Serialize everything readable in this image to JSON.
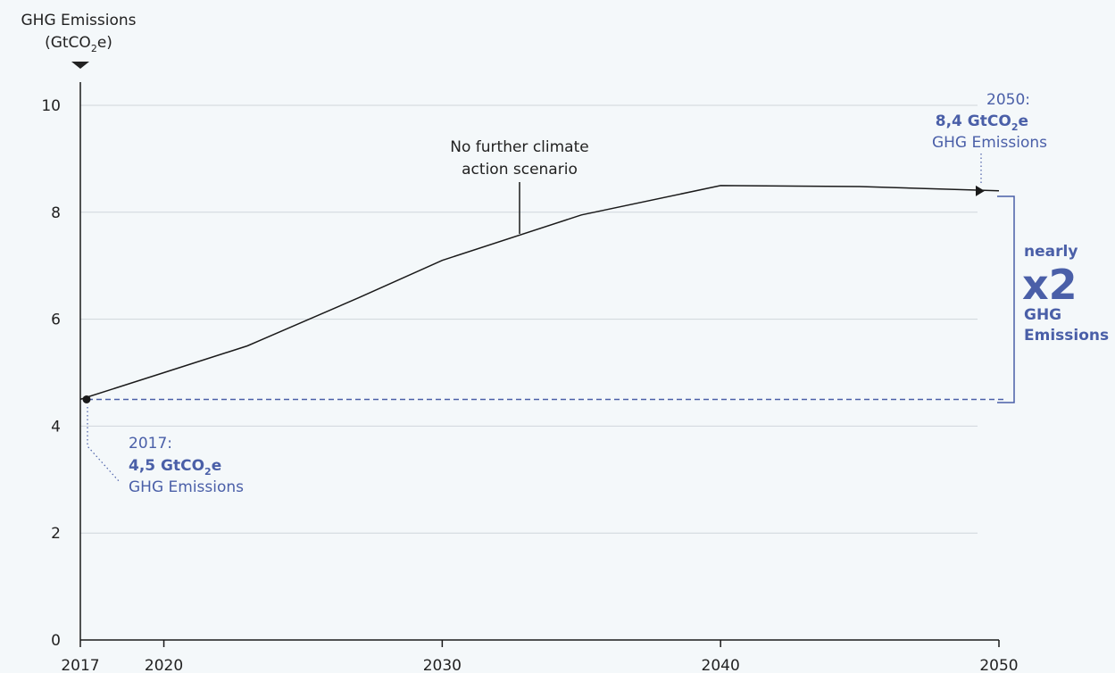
{
  "chart_data": {
    "type": "line",
    "ylabel_line1": "GHG Emissions",
    "ylabel_line2_prefix": "(GtCO",
    "ylabel_line2_sub": "2",
    "ylabel_line2_suffix": "e)",
    "ylim": [
      0,
      10
    ],
    "yticks": [
      0,
      2,
      4,
      6,
      8,
      10
    ],
    "xlim": [
      2017,
      2050
    ],
    "xticks": [
      2017,
      2020,
      2030,
      2040,
      2050
    ],
    "grid": true,
    "series": [
      {
        "x": [
          2017,
          2020,
          2023,
          2027,
          2030,
          2035,
          2040,
          2045,
          2050
        ],
        "y": [
          4.5,
          5.0,
          5.5,
          6.4,
          7.1,
          7.95,
          8.5,
          8.48,
          8.4
        ]
      }
    ],
    "baseline": 4.5,
    "scenario_label": [
      "No further climate",
      "action scenario"
    ],
    "start_annotation": {
      "year_label": "2017:",
      "value_prefix": "4,5 GtCO",
      "value_sub": "2",
      "value_suffix": "e",
      "caption": "GHG Emissions"
    },
    "end_annotation": {
      "year_label": "2050:",
      "value_prefix": "8,4 GtCO",
      "value_sub": "2",
      "value_suffix": "e",
      "caption": "GHG Emissions"
    },
    "bracket_annotation": {
      "line1": "nearly",
      "line2": "x2",
      "line3": "GHG",
      "line4": "Emissions"
    },
    "colors": {
      "line": "#1a1a1a",
      "accent": "#4a5fa8",
      "grid": "#cfd6db",
      "background": "#f4f8fa"
    }
  }
}
